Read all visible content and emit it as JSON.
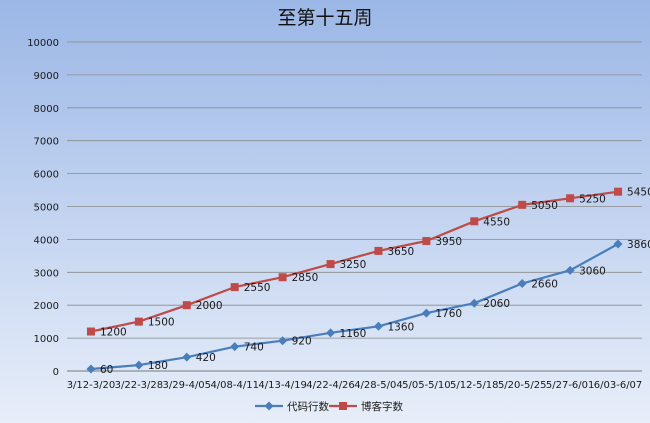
{
  "chart_data": {
    "type": "line",
    "title": "至第十五周",
    "categories": [
      "3/12-3/20",
      "3/22-3/28",
      "3/29-4/05",
      "4/08-4/11",
      "4/13-4/19",
      "4/22-4/26",
      "4/28-5/04",
      "5/05-5/10",
      "5/12-5/18",
      "5/20-5/25",
      "5/27-6/01",
      "6/03-6/07"
    ],
    "series": [
      {
        "name": "代码行数",
        "color": "#4a7ebb",
        "marker": "diamond",
        "values": [
          60,
          180,
          420,
          740,
          920,
          1160,
          1360,
          1760,
          2060,
          2660,
          3060,
          3860
        ],
        "labels": [
          "60",
          "180",
          "420",
          "740",
          "920",
          "1160",
          "1360",
          "1760",
          "2060",
          "2660",
          "3060",
          "3860"
        ]
      },
      {
        "name": "博客字数",
        "color": "#be4b48",
        "marker": "square",
        "values": [
          1200,
          1500,
          2000,
          2550,
          2850,
          3250,
          3650,
          3950,
          4550,
          5050,
          5250,
          5450
        ],
        "labels": [
          "1200",
          "1500",
          "2000",
          "2550",
          "2850",
          "3250",
          "3650",
          "3950",
          "4550",
          "5050",
          "5250",
          "5450"
        ]
      }
    ],
    "ylim": [
      0,
      10000
    ],
    "yticks": [
      "0",
      "1000",
      "2000",
      "3000",
      "4000",
      "5000",
      "6000",
      "7000",
      "8000",
      "9000",
      "10000"
    ],
    "grid": true,
    "legend_position": "bottom"
  }
}
